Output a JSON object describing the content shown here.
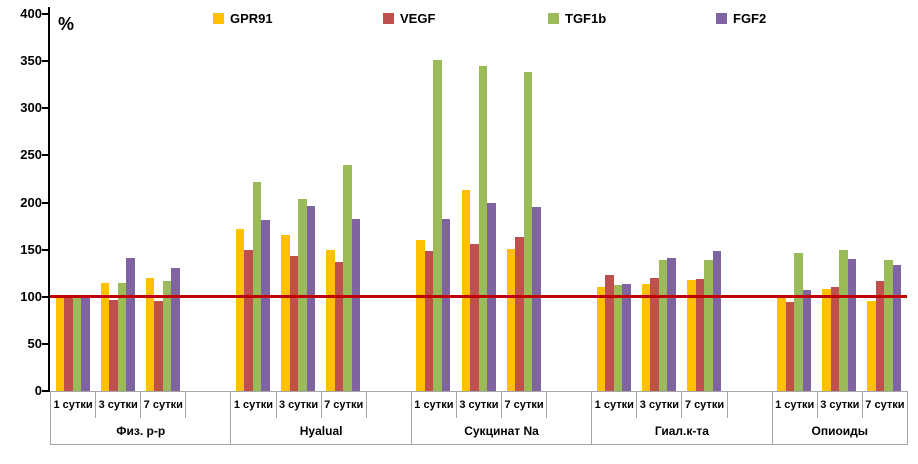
{
  "chart": {
    "unit_label": "%"
  },
  "chart_data": {
    "type": "bar",
    "title": "",
    "ylabel": "%",
    "xlabel": "",
    "ylim": [
      0,
      400
    ],
    "yticks": [
      400,
      350,
      300,
      250,
      200,
      150,
      100,
      50,
      0
    ],
    "grid": false,
    "legend_position": "top",
    "reference_line": {
      "value": 100,
      "color": "#c00000"
    },
    "series": [
      {
        "name": "GPR91",
        "color": "#FFC000"
      },
      {
        "name": "VEGF",
        "color": "#C0504D"
      },
      {
        "name": "TGF1b",
        "color": "#9BBB59"
      },
      {
        "name": "FGF2",
        "color": "#8064A2"
      }
    ],
    "time_labels": [
      "1 сутки",
      "3 сутки",
      "7 сутки"
    ],
    "groups": [
      {
        "label": "Физ. р-р",
        "values": [
          [
            100,
            100,
            100,
            100
          ],
          [
            115,
            97,
            115,
            141
          ],
          [
            120,
            96,
            117,
            130
          ]
        ]
      },
      {
        "label": "Hyalual",
        "values": [
          [
            172,
            150,
            222,
            181
          ],
          [
            166,
            143,
            204,
            196
          ],
          [
            150,
            137,
            240,
            182
          ]
        ]
      },
      {
        "label": "Сукцинат Na",
        "values": [
          [
            160,
            149,
            351,
            182
          ],
          [
            213,
            156,
            345,
            199
          ],
          [
            151,
            163,
            338,
            195
          ]
        ]
      },
      {
        "label": "Гиал.к-та",
        "values": [
          [
            110,
            123,
            112,
            114
          ],
          [
            114,
            120,
            139,
            141
          ],
          [
            118,
            119,
            139,
            149
          ]
        ]
      },
      {
        "label": "Опиоиды",
        "values": [
          [
            101,
            94,
            146,
            107
          ],
          [
            108,
            110,
            150,
            140
          ],
          [
            95,
            117,
            139,
            134
          ]
        ]
      }
    ]
  }
}
